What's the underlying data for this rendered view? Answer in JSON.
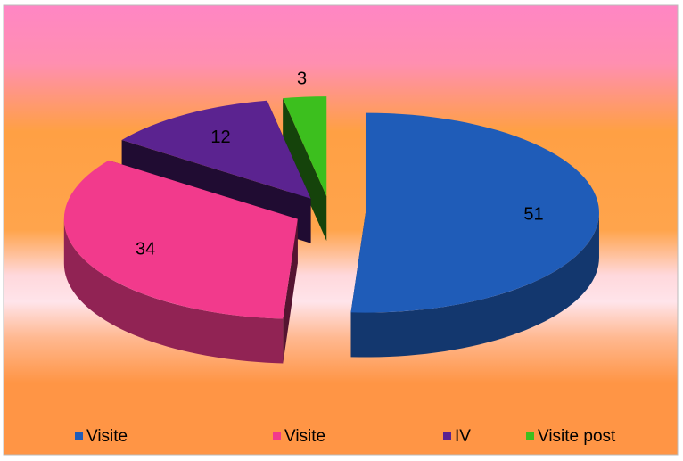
{
  "chart_data": {
    "type": "pie3d",
    "categories": [
      "Visite",
      "Visite",
      "IV",
      "Visite post"
    ],
    "values": [
      51,
      34,
      12,
      3
    ],
    "colors": [
      "#1f5cb8",
      "#f23a8c",
      "#5b2390",
      "#3cbf1e"
    ],
    "legend": "bottom"
  }
}
